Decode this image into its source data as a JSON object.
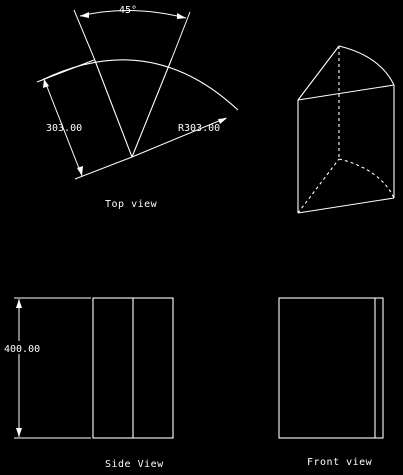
{
  "top_view": {
    "angle_dim": "45°",
    "length_dim": "303.00",
    "radius_dim": "R303.00",
    "label": "Top view"
  },
  "side_view": {
    "height_dim": "400.00",
    "label": "Side View"
  },
  "front_view": {
    "label": "Front view"
  },
  "colors": {
    "background": "#000000",
    "linework": "#ffffff"
  }
}
